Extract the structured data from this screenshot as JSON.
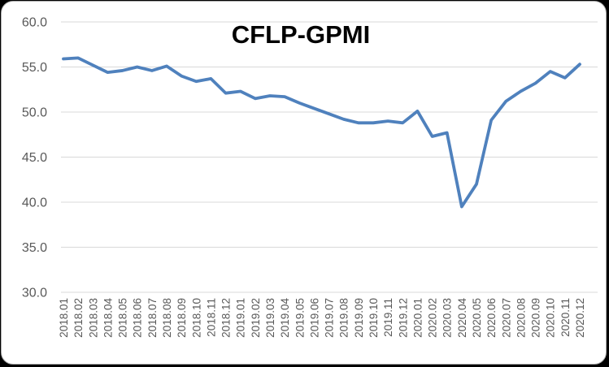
{
  "frame": {
    "page_corner_color": "#000000",
    "card_background": "#FFFFFF",
    "card_border_color": "#ADADAD"
  },
  "chart_data": {
    "type": "line",
    "title": "CFLP-GPMI",
    "series_name": "CFLP-GPMI",
    "categories": [
      "2018.01",
      "2018.02",
      "2018.03",
      "2018.04",
      "2018.05",
      "2018.06",
      "2018.07",
      "2018.08",
      "2018.09",
      "2018.10",
      "2018.11",
      "2018.12",
      "2019.01",
      "2019.02",
      "2019.03",
      "2019.04",
      "2019.05",
      "2019.06",
      "2019.07",
      "2019.08",
      "2019.09",
      "2019.10",
      "2019.11",
      "2019.12",
      "2020.01",
      "2020.02",
      "2020.03",
      "2020.04",
      "2020.05",
      "2020.06",
      "2020.07",
      "2020.08",
      "2020.09",
      "2020.10",
      "2020.11",
      "2020.12"
    ],
    "values": [
      55.9,
      56.0,
      55.2,
      54.4,
      54.6,
      55.0,
      54.6,
      55.1,
      54.0,
      53.4,
      53.7,
      52.1,
      52.3,
      51.5,
      51.8,
      51.7,
      51.0,
      50.4,
      49.8,
      49.2,
      48.8,
      48.8,
      49.0,
      48.8,
      50.1,
      47.3,
      47.7,
      39.5,
      42.0,
      49.1,
      51.2,
      52.3,
      53.2,
      54.5,
      53.8,
      55.3
    ],
    "xlabel": "",
    "ylabel": "",
    "ylim": [
      30,
      60
    ],
    "ytick_step": 5,
    "ytick_labels": [
      "60.0",
      "55.0",
      "50.0",
      "45.0",
      "40.0",
      "35.0",
      "30.0"
    ],
    "grid": true,
    "legend_position": "none",
    "line_color": "#4F81BD",
    "grid_color": "#D9D9D9",
    "tick_label_color": "#595959",
    "title_color": "#000000"
  }
}
